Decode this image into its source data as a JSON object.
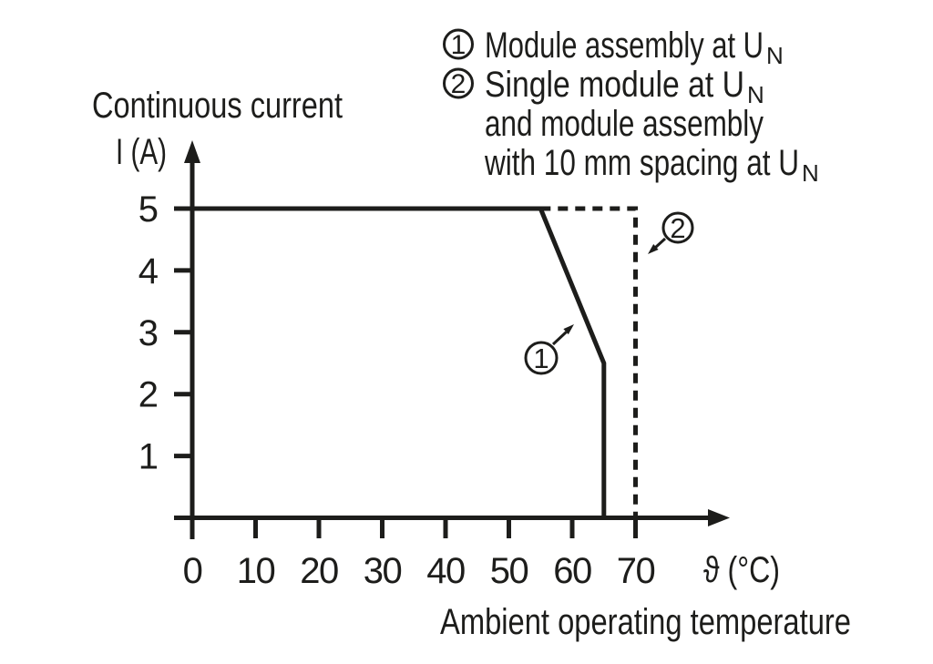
{
  "colors": {
    "ink": "#1d1d1b",
    "background": "#ffffff"
  },
  "y_axis": {
    "title_line1": "Continuous current",
    "title_line2": "I (A)"
  },
  "x_axis": {
    "unit_label": "ϑ (°C)",
    "title": "Ambient operating temperature"
  },
  "legend": {
    "rows": [
      {
        "marker": "1",
        "text": "Module assembly at U",
        "sub": "N"
      },
      {
        "marker": "2",
        "text": "Single module at U",
        "sub": "N"
      },
      {
        "marker": "",
        "text": "and module assembly",
        "sub": ""
      },
      {
        "marker": "",
        "text": "with 10 mm spacing at U",
        "sub": "N"
      }
    ]
  },
  "annotations": [
    {
      "label": "1"
    },
    {
      "label": "2"
    }
  ],
  "chart_data": {
    "type": "line",
    "title": "",
    "xlabel": "Ambient operating temperature ϑ (°C)",
    "ylabel": "Continuous current I (A)",
    "xlim": [
      0,
      78
    ],
    "ylim": [
      0,
      6
    ],
    "x_ticks": [
      0,
      10,
      20,
      30,
      40,
      50,
      60,
      70
    ],
    "y_ticks": [
      5,
      4,
      3,
      2,
      1
    ],
    "grid": false,
    "legend_position": "top-right",
    "series": [
      {
        "name": "Module assembly at UN",
        "marker": "1",
        "line_style": "solid",
        "points": [
          [
            0,
            5
          ],
          [
            55,
            5
          ],
          [
            65,
            2.5
          ],
          [
            65,
            0
          ]
        ]
      },
      {
        "name": "Single module at UN and module assembly with 10 mm spacing at UN",
        "marker": "2",
        "line_style": "dashed",
        "points": [
          [
            55,
            5
          ],
          [
            70,
            5
          ],
          [
            70,
            0
          ]
        ]
      }
    ]
  }
}
